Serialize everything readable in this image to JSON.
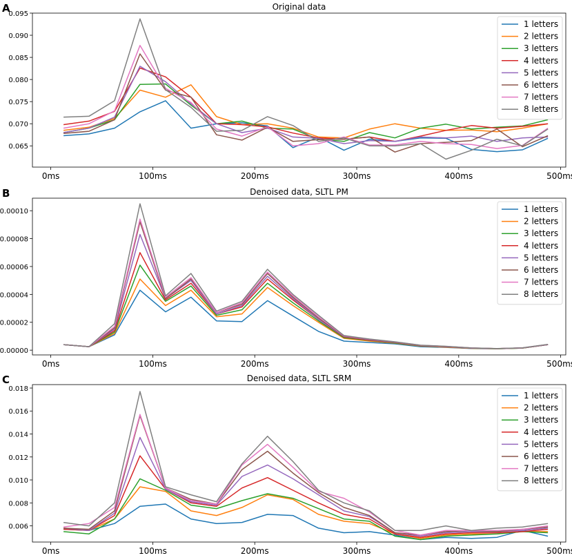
{
  "chart_data": [
    {
      "type": "line",
      "panel_letter": "A",
      "title": "Original data",
      "xlabel": "",
      "ylabel": "",
      "xlim": [
        -18,
        505
      ],
      "ylim": [
        0.0602,
        0.095
      ],
      "x_ticks": [
        0,
        100,
        200,
        300,
        400,
        500
      ],
      "x_tick_labels": [
        "0ms",
        "100ms",
        "200ms",
        "300ms",
        "400ms",
        "500ms"
      ],
      "y_ticks": [
        0.065,
        0.07,
        0.075,
        0.08,
        0.085,
        0.09,
        0.095
      ],
      "y_tick_labels": [
        "0.065",
        "0.070",
        "0.075",
        "0.080",
        "0.085",
        "0.090",
        "0.095"
      ],
      "legend_position": "top-right",
      "x": [
        12.5,
        37.5,
        62.5,
        87.5,
        112.5,
        137.5,
        162.5,
        187.5,
        212.5,
        237.5,
        262.5,
        287.5,
        312.5,
        337.5,
        362.5,
        387.5,
        412.5,
        437.5,
        462.5,
        487.5
      ],
      "series": [
        {
          "name": "1 letters",
          "color": "#1f77b4",
          "values": [
            0.0673,
            0.0677,
            0.069,
            0.0727,
            0.0752,
            0.069,
            0.07,
            0.0702,
            0.0695,
            0.0646,
            0.067,
            0.064,
            0.0665,
            0.066,
            0.0668,
            0.0667,
            0.0642,
            0.0637,
            0.0641,
            0.0667
          ]
        },
        {
          "name": "2 letters",
          "color": "#ff7f0e",
          "values": [
            0.0685,
            0.0692,
            0.0712,
            0.0776,
            0.076,
            0.0788,
            0.0716,
            0.0698,
            0.07,
            0.069,
            0.067,
            0.0668,
            0.0688,
            0.07,
            0.069,
            0.0685,
            0.0686,
            0.0682,
            0.069,
            0.07
          ]
        },
        {
          "name": "3 letters",
          "color": "#2ca02c",
          "values": [
            0.068,
            0.069,
            0.0709,
            0.0789,
            0.079,
            0.0742,
            0.07,
            0.0706,
            0.069,
            0.0688,
            0.0665,
            0.066,
            0.068,
            0.0668,
            0.069,
            0.0699,
            0.0688,
            0.0692,
            0.0695,
            0.0709
          ]
        },
        {
          "name": "4 letters",
          "color": "#d62728",
          "values": [
            0.0698,
            0.0706,
            0.0728,
            0.0826,
            0.0806,
            0.076,
            0.07,
            0.0698,
            0.0693,
            0.0679,
            0.0668,
            0.0665,
            0.067,
            0.066,
            0.0672,
            0.0685,
            0.0696,
            0.069,
            0.0694,
            0.07
          ]
        },
        {
          "name": "5 letters",
          "color": "#9467bd",
          "values": [
            0.068,
            0.069,
            0.0715,
            0.083,
            0.0795,
            0.0745,
            0.07,
            0.068,
            0.069,
            0.067,
            0.0667,
            0.0655,
            0.0662,
            0.066,
            0.067,
            0.0668,
            0.0672,
            0.066,
            0.0668,
            0.067
          ]
        },
        {
          "name": "6 letters",
          "color": "#8c564b",
          "values": [
            0.0678,
            0.0683,
            0.0709,
            0.0858,
            0.0776,
            0.076,
            0.0675,
            0.0663,
            0.0692,
            0.066,
            0.0664,
            0.0665,
            0.067,
            0.0636,
            0.0655,
            0.0658,
            0.0662,
            0.0688,
            0.0648,
            0.0673
          ]
        },
        {
          "name": "7 letters",
          "color": "#e377c2",
          "values": [
            0.069,
            0.07,
            0.0729,
            0.0877,
            0.078,
            0.0748,
            0.0688,
            0.0672,
            0.0693,
            0.065,
            0.0655,
            0.067,
            0.0652,
            0.0652,
            0.066,
            0.0655,
            0.0653,
            0.0644,
            0.0651,
            0.069
          ]
        },
        {
          "name": "8 letters",
          "color": "#7f7f7f",
          "values": [
            0.0715,
            0.0717,
            0.0752,
            0.0937,
            0.0777,
            0.0737,
            0.0683,
            0.0685,
            0.0716,
            0.0696,
            0.066,
            0.0668,
            0.065,
            0.065,
            0.0655,
            0.062,
            0.064,
            0.0665,
            0.065,
            0.0688
          ]
        }
      ]
    },
    {
      "type": "line",
      "panel_letter": "B",
      "title": "Denoised data, SLTL PM",
      "xlabel": "",
      "ylabel": "",
      "xlim": [
        -18,
        505
      ],
      "ylim": [
        -3.4e-06,
        0.000109
      ],
      "x_ticks": [
        0,
        100,
        200,
        300,
        400,
        500
      ],
      "x_tick_labels": [
        "0ms",
        "100ms",
        "200ms",
        "300ms",
        "400ms",
        "500ms"
      ],
      "y_ticks": [
        0,
        2e-05,
        4e-05,
        6e-05,
        8e-05,
        0.0001
      ],
      "y_tick_labels": [
        "0.00000",
        "0.00002",
        "0.00004",
        "0.00006",
        "0.00008",
        "0.00010"
      ],
      "legend_position": "top-right",
      "x": [
        12.5,
        37.5,
        62.5,
        87.5,
        112.5,
        137.5,
        162.5,
        187.5,
        212.5,
        237.5,
        262.5,
        287.5,
        312.5,
        337.5,
        362.5,
        387.5,
        412.5,
        437.5,
        462.5,
        487.5
      ],
      "series": [
        {
          "name": "1 letters",
          "color": "#1f77b4",
          "values": [
            4e-06,
            2.5e-06,
            1.1e-05,
            4.3e-05,
            2.75e-05,
            3.8e-05,
            2.1e-05,
            2.05e-05,
            3.55e-05,
            2.45e-05,
            1.35e-05,
            6.5e-06,
            5.5e-06,
            4.5e-06,
            2.5e-06,
            2e-06,
            1.2e-06,
            1e-06,
            1.5e-06,
            4e-06
          ]
        },
        {
          "name": "2 letters",
          "color": "#ff7f0e",
          "values": [
            4e-06,
            2.5e-06,
            1.2e-05,
            5.1e-05,
            3.2e-05,
            4.3e-05,
            2.4e-05,
            2.6e-05,
            4.5e-05,
            3.2e-05,
            2e-05,
            8.5e-06,
            6.5e-06,
            5e-06,
            3e-06,
            2.2e-06,
            1.3e-06,
            1e-06,
            1.5e-06,
            4e-06
          ]
        },
        {
          "name": "3 letters",
          "color": "#2ca02c",
          "values": [
            4e-06,
            2.5e-06,
            1.3e-05,
            6.1e-05,
            3.5e-05,
            4.6e-05,
            2.5e-05,
            2.9e-05,
            4.8e-05,
            3.4e-05,
            2.1e-05,
            9e-06,
            7e-06,
            5.2e-06,
            3.2e-06,
            2.4e-06,
            1.4e-06,
            1e-06,
            1.5e-06,
            4e-06
          ]
        },
        {
          "name": "4 letters",
          "color": "#d62728",
          "values": [
            4e-06,
            2.5e-06,
            1.4e-05,
            7e-05,
            3.6e-05,
            4.8e-05,
            2.6e-05,
            3.1e-05,
            5.1e-05,
            3.6e-05,
            2.2e-05,
            9.5e-06,
            7.2e-06,
            5.5e-06,
            3.3e-06,
            2.5e-06,
            1.5e-06,
            1.1e-06,
            1.6e-06,
            4e-06
          ]
        },
        {
          "name": "5 letters",
          "color": "#9467bd",
          "values": [
            4e-06,
            2.5e-06,
            1.5e-05,
            8.3e-05,
            3.7e-05,
            5e-05,
            2.6e-05,
            3.2e-05,
            5.3e-05,
            3.7e-05,
            2.2e-05,
            9.8e-06,
            7.5e-06,
            5.7e-06,
            3.4e-06,
            2.6e-06,
            1.5e-06,
            1.1e-06,
            1.6e-06,
            4e-06
          ]
        },
        {
          "name": "6 letters",
          "color": "#8c564b",
          "values": [
            4e-06,
            2.5e-06,
            1.6e-05,
            9.2e-05,
            3.7e-05,
            5.1e-05,
            2.7e-05,
            3.3e-05,
            5.5e-05,
            3.8e-05,
            2.3e-05,
            1e-05,
            7.7e-06,
            5.8e-06,
            3.5e-06,
            2.7e-06,
            1.6e-06,
            1.1e-06,
            1.6e-06,
            4.1e-06
          ]
        },
        {
          "name": "7 letters",
          "color": "#e377c2",
          "values": [
            4e-06,
            2.5e-06,
            1.7e-05,
            9.4e-05,
            3.8e-05,
            5.2e-05,
            2.7e-05,
            3.4e-05,
            5.6e-05,
            3.9e-05,
            2.4e-05,
            1.02e-05,
            7.8e-06,
            5.9e-06,
            3.5e-06,
            2.7e-06,
            1.6e-06,
            1.1e-06,
            1.6e-06,
            4.1e-06
          ]
        },
        {
          "name": "8 letters",
          "color": "#7f7f7f",
          "values": [
            4e-06,
            2.5e-06,
            1.9e-05,
            0.000105,
            3.9e-05,
            5.5e-05,
            2.8e-05,
            3.5e-05,
            5.8e-05,
            4e-05,
            2.5e-05,
            1.05e-05,
            8e-06,
            6e-06,
            3.6e-06,
            2.8e-06,
            1.6e-06,
            1.2e-06,
            1.7e-06,
            4.2e-06
          ]
        }
      ]
    },
    {
      "type": "line",
      "panel_letter": "C",
      "title": "Denoised data, SLTL SRM",
      "xlabel": "",
      "ylabel": "",
      "xlim": [
        -18,
        505
      ],
      "ylim": [
        0.00459,
        0.0183
      ],
      "x_ticks": [
        0,
        100,
        200,
        300,
        400,
        500
      ],
      "x_tick_labels": [
        "0ms",
        "100ms",
        "200ms",
        "300ms",
        "400ms",
        "500ms"
      ],
      "y_ticks": [
        0.006,
        0.008,
        0.01,
        0.012,
        0.014,
        0.016,
        0.018
      ],
      "y_tick_labels": [
        "0.006",
        "0.008",
        "0.010",
        "0.012",
        "0.014",
        "0.016",
        "0.018"
      ],
      "legend_position": "top-right",
      "x": [
        12.5,
        37.5,
        62.5,
        87.5,
        112.5,
        137.5,
        162.5,
        187.5,
        212.5,
        237.5,
        262.5,
        287.5,
        312.5,
        337.5,
        362.5,
        387.5,
        412.5,
        437.5,
        462.5,
        487.5
      ],
      "series": [
        {
          "name": "1 letters",
          "color": "#1f77b4",
          "values": [
            0.0057,
            0.0056,
            0.0062,
            0.0077,
            0.0079,
            0.0066,
            0.0062,
            0.0063,
            0.007,
            0.0069,
            0.0058,
            0.0054,
            0.0055,
            0.0052,
            0.0048,
            0.005,
            0.0049,
            0.005,
            0.0056,
            0.0051
          ]
        },
        {
          "name": "2 letters",
          "color": "#ff7f0e",
          "values": [
            0.0058,
            0.0056,
            0.0066,
            0.0094,
            0.009,
            0.0073,
            0.0069,
            0.0076,
            0.0087,
            0.0083,
            0.007,
            0.0064,
            0.0062,
            0.0053,
            0.0049,
            0.0052,
            0.0053,
            0.0053,
            0.0055,
            0.0055
          ]
        },
        {
          "name": "3 letters",
          "color": "#2ca02c",
          "values": [
            0.0055,
            0.0053,
            0.0066,
            0.0101,
            0.0091,
            0.0078,
            0.0075,
            0.0082,
            0.0088,
            0.0084,
            0.0075,
            0.0066,
            0.0064,
            0.0051,
            0.0048,
            0.0051,
            0.0052,
            0.0053,
            0.0055,
            0.0054
          ]
        },
        {
          "name": "4 letters",
          "color": "#d62728",
          "values": [
            0.0057,
            0.0056,
            0.0069,
            0.0121,
            0.0092,
            0.008,
            0.0077,
            0.0093,
            0.0102,
            0.0091,
            0.008,
            0.007,
            0.0066,
            0.0053,
            0.005,
            0.0053,
            0.0054,
            0.0054,
            0.0055,
            0.0057
          ]
        },
        {
          "name": "5 letters",
          "color": "#9467bd",
          "values": [
            0.0058,
            0.0056,
            0.0071,
            0.0137,
            0.0092,
            0.0081,
            0.0078,
            0.0103,
            0.0113,
            0.0101,
            0.0087,
            0.0073,
            0.0068,
            0.0054,
            0.0051,
            0.0054,
            0.0055,
            0.0055,
            0.0056,
            0.0058
          ]
        },
        {
          "name": "6 letters",
          "color": "#8c564b",
          "values": [
            0.0058,
            0.0057,
            0.0073,
            0.0156,
            0.0093,
            0.0083,
            0.0079,
            0.0109,
            0.0125,
            0.0106,
            0.0089,
            0.0076,
            0.0069,
            0.0054,
            0.0052,
            0.0055,
            0.0056,
            0.0055,
            0.0057,
            0.0059
          ]
        },
        {
          "name": "7 letters",
          "color": "#e377c2",
          "values": [
            0.0059,
            0.0062,
            0.0076,
            0.0157,
            0.0093,
            0.0082,
            0.0079,
            0.0113,
            0.0131,
            0.0111,
            0.009,
            0.0084,
            0.0072,
            0.0056,
            0.0052,
            0.0056,
            0.0056,
            0.0056,
            0.0057,
            0.006
          ]
        },
        {
          "name": "8 letters",
          "color": "#7f7f7f",
          "values": [
            0.0063,
            0.006,
            0.008,
            0.0177,
            0.0094,
            0.0087,
            0.0081,
            0.0114,
            0.0138,
            0.0116,
            0.0091,
            0.008,
            0.0073,
            0.0056,
            0.0056,
            0.006,
            0.0056,
            0.0058,
            0.0059,
            0.0062
          ]
        }
      ]
    }
  ]
}
